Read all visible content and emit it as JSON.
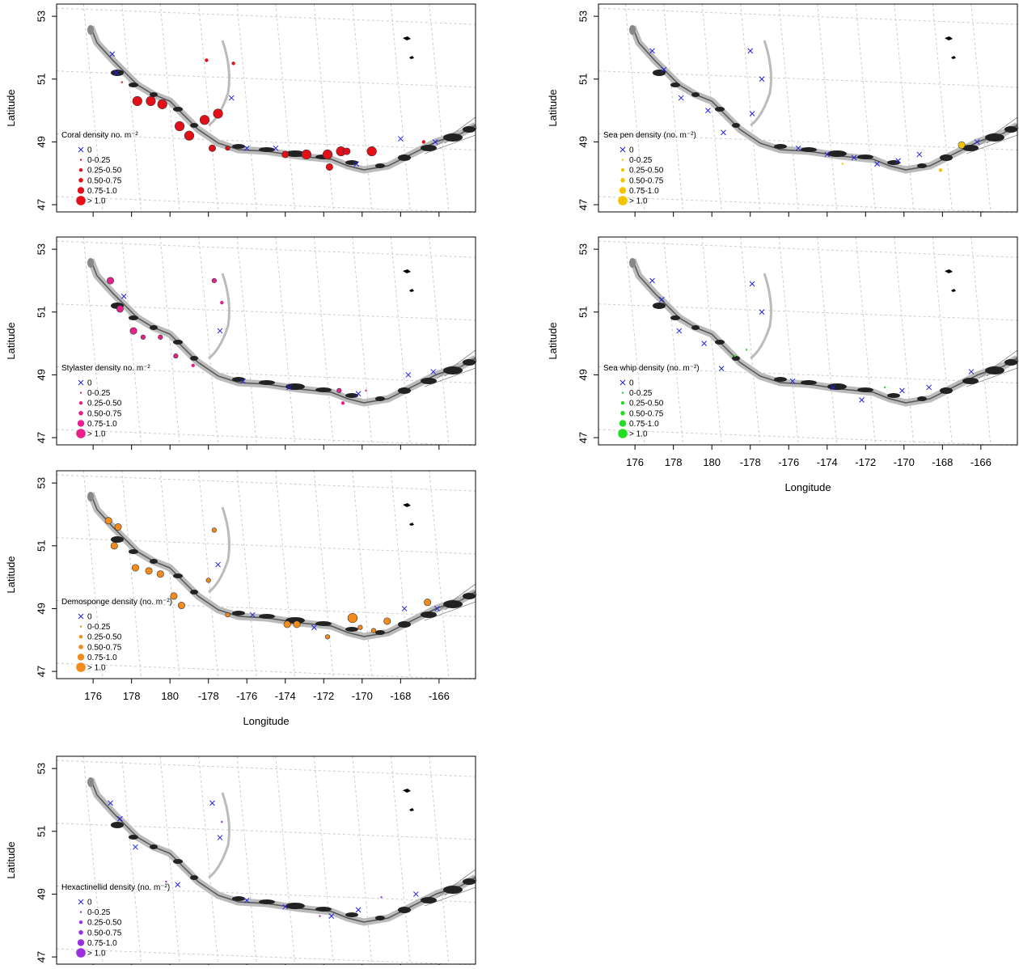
{
  "axes": {
    "x_label": "Longitude",
    "y_label": "Latitude",
    "xlim": [
      174.1,
      195.9
    ],
    "ylim": [
      46.77,
      53.39
    ],
    "xticks": [
      176,
      178,
      180,
      {
        "value": 182,
        "label": "-178"
      },
      {
        "value": 184,
        "label": "-176"
      },
      {
        "value": 186,
        "label": "-174"
      },
      {
        "value": 188,
        "label": "-172"
      },
      {
        "value": 190,
        "label": "-170"
      },
      {
        "value": 192,
        "label": "-168"
      },
      {
        "value": 194,
        "label": "-166"
      }
    ],
    "yticks": [
      47,
      49,
      51,
      53
    ],
    "grid": true,
    "absent_color": "#2222dd"
  },
  "legend_labels": [
    "0",
    "0-0.25",
    "0.25-0.50",
    "0.50-0.75",
    "0.75-1.0",
    "> 1.0"
  ],
  "panels": [
    {
      "title": "Coral density no. m⁻²",
      "color": "#e3101a",
      "show_x_labels": false,
      "points": [
        [
          178.3,
          50.3,
          5
        ],
        [
          179.0,
          50.3,
          5
        ],
        [
          179.6,
          50.2,
          5
        ],
        [
          180.5,
          49.5,
          5
        ],
        [
          181.0,
          49.2,
          5
        ],
        [
          181.8,
          49.7,
          5
        ],
        [
          182.5,
          49.9,
          5
        ],
        [
          182.2,
          48.8,
          4
        ],
        [
          183.0,
          48.8,
          3
        ],
        [
          186.0,
          48.6,
          4
        ],
        [
          187.1,
          48.6,
          5
        ],
        [
          188.2,
          48.6,
          5
        ],
        [
          188.3,
          48.2,
          4
        ],
        [
          188.9,
          48.7,
          5
        ],
        [
          189.2,
          48.7,
          4
        ],
        [
          190.5,
          48.7,
          5
        ],
        [
          181.9,
          51.6,
          2
        ],
        [
          183.3,
          51.5,
          2
        ],
        [
          193.2,
          49.0,
          2
        ],
        [
          177.0,
          51.8,
          0
        ],
        [
          177.2,
          51.2,
          0
        ],
        [
          183.2,
          50.4,
          0
        ],
        [
          184.0,
          48.8,
          0
        ],
        [
          185.5,
          48.8,
          0
        ],
        [
          189.7,
          48.3,
          0
        ],
        [
          192.0,
          49.1,
          0
        ],
        [
          193.8,
          49.0,
          0
        ],
        [
          177.5,
          50.9,
          1
        ]
      ]
    },
    {
      "title": "Sea pen density (no. m⁻²)",
      "color": "#f5c400",
      "show_x_labels": false,
      "points": [
        [
          193.0,
          48.9,
          4
        ],
        [
          191.9,
          48.1,
          2
        ],
        [
          186.8,
          48.3,
          1
        ],
        [
          176.9,
          51.9,
          0
        ],
        [
          177.5,
          51.3,
          0
        ],
        [
          178.4,
          50.4,
          0
        ],
        [
          179.8,
          50.0,
          0
        ],
        [
          180.6,
          49.3,
          0
        ],
        [
          182.0,
          51.9,
          0
        ],
        [
          182.6,
          51.0,
          0
        ],
        [
          182.1,
          49.9,
          0
        ],
        [
          184.5,
          48.8,
          0
        ],
        [
          186.0,
          48.6,
          0
        ],
        [
          187.4,
          48.5,
          0
        ],
        [
          188.6,
          48.3,
          0
        ],
        [
          189.7,
          48.4,
          0
        ],
        [
          190.8,
          48.6,
          0
        ],
        [
          193.8,
          49.0,
          0
        ]
      ]
    },
    {
      "title": "Stylaster density no. m⁻²",
      "color": "#e8208c",
      "show_x_labels": false,
      "points": [
        [
          176.9,
          52.0,
          4
        ],
        [
          177.4,
          51.1,
          4
        ],
        [
          178.1,
          50.4,
          4
        ],
        [
          178.6,
          50.2,
          3
        ],
        [
          179.5,
          50.2,
          3
        ],
        [
          180.3,
          49.6,
          3
        ],
        [
          181.2,
          49.3,
          2
        ],
        [
          182.3,
          52.0,
          3
        ],
        [
          182.7,
          51.3,
          2
        ],
        [
          188.8,
          48.5,
          3
        ],
        [
          189.0,
          48.1,
          2
        ],
        [
          190.2,
          48.5,
          1
        ],
        [
          177.6,
          51.5,
          0
        ],
        [
          182.6,
          50.4,
          0
        ],
        [
          183.8,
          48.8,
          0
        ],
        [
          186.2,
          48.6,
          0
        ],
        [
          189.8,
          48.4,
          0
        ],
        [
          192.4,
          49.0,
          0
        ],
        [
          193.7,
          49.1,
          0
        ]
      ]
    },
    {
      "title": "Sea whip density (no. m⁻²)",
      "color": "#22dd22",
      "show_x_labels": true,
      "points": [
        [
          181.2,
          49.6,
          1
        ],
        [
          181.8,
          49.8,
          1
        ],
        [
          189.0,
          48.6,
          1
        ],
        [
          176.9,
          52.0,
          0
        ],
        [
          177.4,
          51.4,
          0
        ],
        [
          178.3,
          50.4,
          0
        ],
        [
          179.6,
          50.0,
          0
        ],
        [
          180.5,
          49.2,
          0
        ],
        [
          182.1,
          51.9,
          0
        ],
        [
          182.6,
          51.0,
          0
        ],
        [
          184.2,
          48.8,
          0
        ],
        [
          186.3,
          48.6,
          0
        ],
        [
          187.8,
          48.2,
          0
        ],
        [
          189.9,
          48.5,
          0
        ],
        [
          191.3,
          48.6,
          0
        ],
        [
          193.5,
          49.1,
          0
        ]
      ]
    },
    {
      "title": "Demosponge density (no. m⁻²)",
      "color": "#f28a1c",
      "show_x_labels": true,
      "points": [
        [
          176.8,
          51.8,
          4
        ],
        [
          177.3,
          51.6,
          4
        ],
        [
          177.1,
          51.0,
          4
        ],
        [
          178.2,
          50.3,
          4
        ],
        [
          178.9,
          50.2,
          4
        ],
        [
          179.5,
          50.1,
          4
        ],
        [
          180.2,
          49.4,
          4
        ],
        [
          180.6,
          49.1,
          4
        ],
        [
          182.0,
          49.9,
          3
        ],
        [
          183.0,
          48.8,
          3
        ],
        [
          182.3,
          51.5,
          3
        ],
        [
          186.1,
          48.5,
          4
        ],
        [
          186.6,
          48.5,
          4
        ],
        [
          188.2,
          48.1,
          3
        ],
        [
          189.5,
          48.7,
          5
        ],
        [
          189.9,
          48.4,
          3
        ],
        [
          190.6,
          48.3,
          3
        ],
        [
          191.3,
          48.6,
          4
        ],
        [
          193.4,
          49.2,
          4
        ],
        [
          182.5,
          50.4,
          0
        ],
        [
          184.3,
          48.8,
          0
        ],
        [
          187.5,
          48.4,
          0
        ],
        [
          192.2,
          49.0,
          0
        ],
        [
          193.9,
          49.0,
          0
        ]
      ]
    },
    {
      "title": "Hexactinellid density (no. m⁻²)",
      "color": "#9b30e0",
      "show_x_labels": false,
      "points": [
        [
          179.8,
          49.4,
          1
        ],
        [
          182.7,
          51.3,
          1
        ],
        [
          187.8,
          48.3,
          1
        ],
        [
          191.0,
          48.9,
          1
        ],
        [
          176.9,
          51.9,
          0
        ],
        [
          177.4,
          51.4,
          0
        ],
        [
          178.2,
          50.5,
          0
        ],
        [
          180.4,
          49.3,
          0
        ],
        [
          182.2,
          51.9,
          0
        ],
        [
          182.6,
          50.8,
          0
        ],
        [
          184.0,
          48.8,
          0
        ],
        [
          186.0,
          48.6,
          0
        ],
        [
          188.4,
          48.3,
          0
        ],
        [
          189.8,
          48.5,
          0
        ],
        [
          192.8,
          49.0,
          0
        ]
      ]
    }
  ]
}
